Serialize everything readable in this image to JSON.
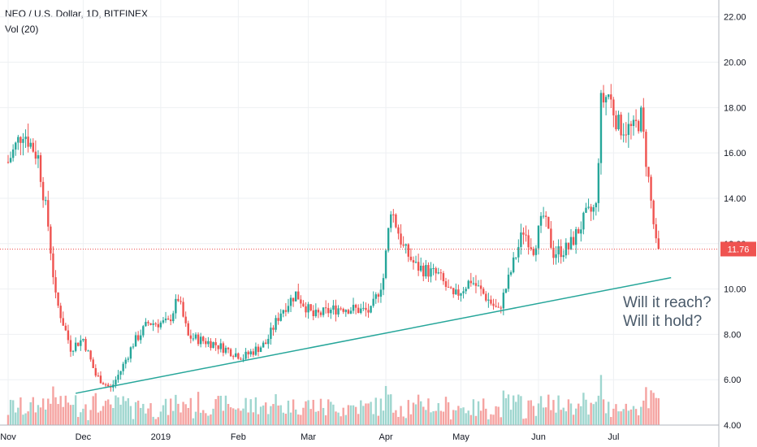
{
  "header": {
    "symbol_line": "NEO / U.S. Dollar, 1D, BITFINEX",
    "volume_line": "Vol (20)"
  },
  "price_tag": "11.76",
  "annotations": [
    "Will it reach?",
    "Will it hold?"
  ],
  "colors": {
    "up": "#26a69a",
    "down": "#ef5350",
    "vol_up": "#9fd6cf",
    "vol_down": "#f5a3a1",
    "trendline": "#26a69a",
    "price_line": "#ef5350",
    "grid": "#eef0f3"
  },
  "chart_data": {
    "type": "candlestick",
    "title": "NEO / U.S. Dollar, 1D, BITFINEX",
    "y_ticks": [
      "22.00",
      "20.00",
      "18.00",
      "16.00",
      "14.00",
      "12.00",
      "10.00",
      "8.00",
      "6.00",
      "4.00"
    ],
    "ylim": [
      4.0,
      22.6
    ],
    "x_ticks": [
      "Nov",
      "Dec",
      "2019",
      "Feb",
      "Mar",
      "Apr",
      "May",
      "Jun",
      "Jul"
    ],
    "x_tick_days": [
      0,
      30,
      61,
      92,
      120,
      151,
      181,
      212,
      242
    ],
    "last_price": 11.76,
    "trendline": {
      "from": [
        "2018-11-28",
        5.4
      ],
      "to": [
        "2019-07-24",
        10.5
      ]
    },
    "price_anchors": [
      [
        "2018-11-01",
        15.6
      ],
      [
        "2018-11-07",
        17.0
      ],
      [
        "2018-11-13",
        15.8
      ],
      [
        "2018-11-17",
        12.8
      ],
      [
        "2018-11-20",
        9.6
      ],
      [
        "2018-11-26",
        7.4
      ],
      [
        "2018-12-01",
        7.8
      ],
      [
        "2018-12-06",
        6.2
      ],
      [
        "2018-12-12",
        5.6
      ],
      [
        "2018-12-16",
        6.4
      ],
      [
        "2018-12-21",
        7.6
      ],
      [
        "2018-12-27",
        8.5
      ],
      [
        "2019-01-04",
        8.5
      ],
      [
        "2019-01-08",
        9.6
      ],
      [
        "2019-01-12",
        7.9
      ],
      [
        "2019-01-22",
        7.6
      ],
      [
        "2019-02-03",
        7.0
      ],
      [
        "2019-02-12",
        7.6
      ],
      [
        "2019-02-18",
        9.0
      ],
      [
        "2019-02-24",
        9.8
      ],
      [
        "2019-03-03",
        8.8
      ],
      [
        "2019-03-14",
        9.2
      ],
      [
        "2019-03-26",
        9.0
      ],
      [
        "2019-03-31",
        10.5
      ],
      [
        "2019-04-03",
        13.6
      ],
      [
        "2019-04-08",
        11.8
      ],
      [
        "2019-04-13",
        11.0
      ],
      [
        "2019-04-22",
        10.6
      ],
      [
        "2019-04-28",
        9.6
      ],
      [
        "2019-05-05",
        10.4
      ],
      [
        "2019-05-13",
        9.4
      ],
      [
        "2019-05-16",
        9.0
      ],
      [
        "2019-05-20",
        10.4
      ],
      [
        "2019-05-26",
        12.6
      ],
      [
        "2019-05-30",
        11.8
      ],
      [
        "2019-06-03",
        13.2
      ],
      [
        "2019-06-07",
        11.6
      ],
      [
        "2019-06-13",
        11.8
      ],
      [
        "2019-06-20",
        13.2
      ],
      [
        "2019-06-24",
        13.6
      ],
      [
        "2019-06-26",
        18.2
      ],
      [
        "2019-06-29",
        18.6
      ],
      [
        "2019-07-03",
        17.2
      ],
      [
        "2019-07-09",
        17.0
      ],
      [
        "2019-07-12",
        17.6
      ],
      [
        "2019-07-15",
        14.8
      ],
      [
        "2019-07-18",
        11.9
      ],
      [
        "2019-07-19",
        11.76
      ]
    ]
  }
}
